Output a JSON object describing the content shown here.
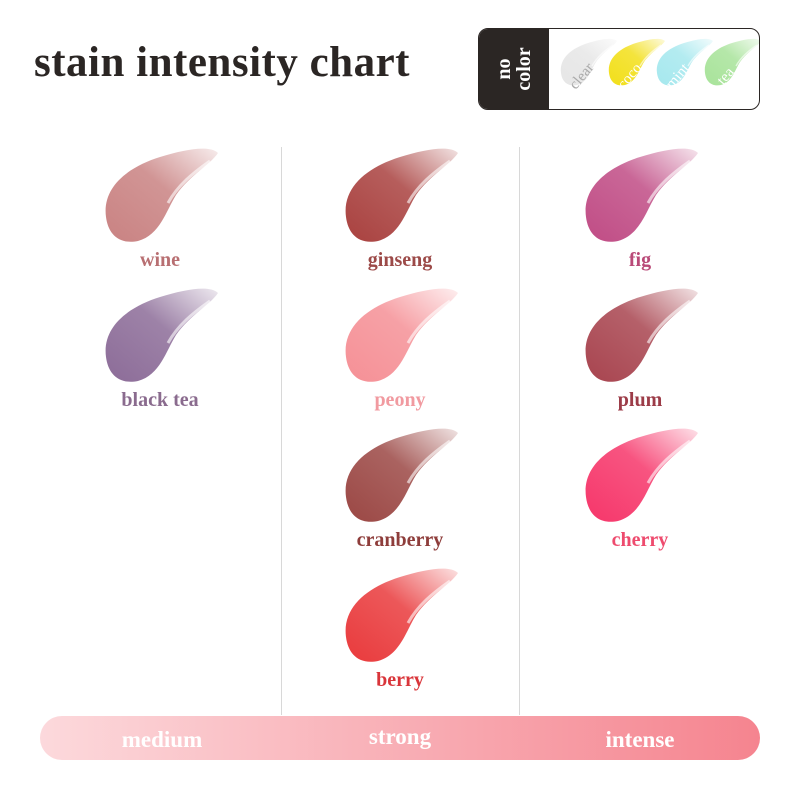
{
  "title": "stain intensity chart",
  "no_color": {
    "label": "no\ncolor",
    "swatches": [
      {
        "name": "clear",
        "color": "#e6e6e6",
        "text_color": "#a9a9a9"
      },
      {
        "name": "coco",
        "color": "#f2df1a",
        "text_color": "#ffffff"
      },
      {
        "name": "mint",
        "color": "#a6e8ee",
        "text_color": "#ffffff"
      },
      {
        "name": "tea",
        "color": "#a8e39a",
        "text_color": "#ffffff"
      }
    ]
  },
  "columns": [
    {
      "intensity": "medium",
      "items": [
        {
          "name": "wine",
          "color": "#c98282",
          "label_color": "#b86f72"
        },
        {
          "name": "black tea",
          "color": "#8c6c98",
          "label_color": "#8a6b8e"
        }
      ]
    },
    {
      "intensity": "strong",
      "items": [
        {
          "name": "ginseng",
          "color": "#a9413f",
          "label_color": "#9c4a48"
        },
        {
          "name": "peony",
          "color": "#f59096",
          "label_color": "#f19aa0"
        },
        {
          "name": "cranberry",
          "color": "#9b4744",
          "label_color": "#8e3d3b"
        },
        {
          "name": "berry",
          "color": "#e93a3c",
          "label_color": "#d9353a"
        }
      ]
    },
    {
      "intensity": "intense",
      "items": [
        {
          "name": "fig",
          "color": "#c04c85",
          "label_color": "#b94a78"
        },
        {
          "name": "plum",
          "color": "#a8444f",
          "label_color": "#9c3c48"
        },
        {
          "name": "cherry",
          "color": "#f6366a",
          "label_color": "#ee4b6e"
        }
      ]
    }
  ],
  "scale_colors": [
    "#fcd9dc",
    "#f5848f"
  ]
}
